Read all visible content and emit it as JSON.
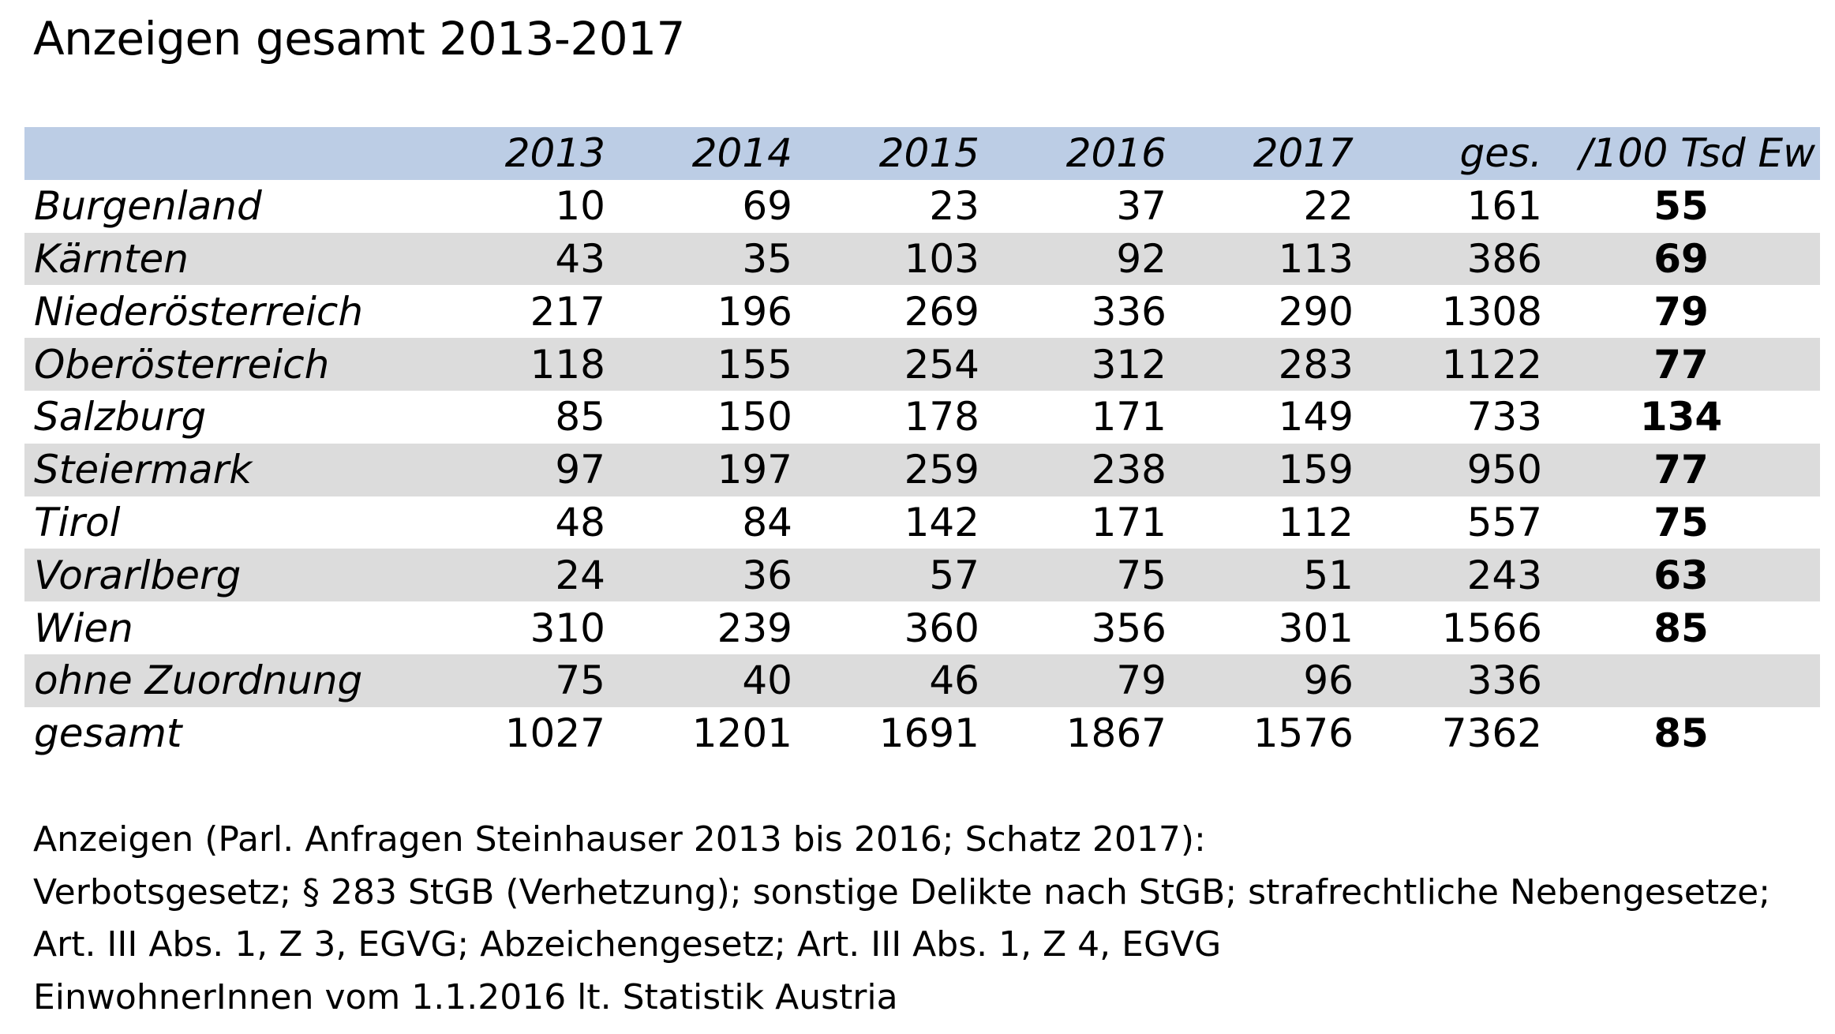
{
  "title": "Anzeigen gesamt 2013-2017",
  "chart_data": {
    "type": "table",
    "title": "Anzeigen gesamt 2013-2017",
    "columns": [
      "",
      "2013",
      "2014",
      "2015",
      "2016",
      "2017",
      "ges.",
      "/100 Tsd Ew"
    ],
    "rows": [
      {
        "label": "Burgenland",
        "values": [
          "10",
          "69",
          "23",
          "37",
          "22",
          "161"
        ],
        "rate": "55"
      },
      {
        "label": "Kärnten",
        "values": [
          "43",
          "35",
          "103",
          "92",
          "113",
          "386"
        ],
        "rate": "69"
      },
      {
        "label": "Niederösterreich",
        "values": [
          "217",
          "196",
          "269",
          "336",
          "290",
          "1308"
        ],
        "rate": "79"
      },
      {
        "label": "Oberösterreich",
        "values": [
          "118",
          "155",
          "254",
          "312",
          "283",
          "1122"
        ],
        "rate": "77"
      },
      {
        "label": "Salzburg",
        "values": [
          "85",
          "150",
          "178",
          "171",
          "149",
          "733"
        ],
        "rate": "134"
      },
      {
        "label": "Steiermark",
        "values": [
          "97",
          "197",
          "259",
          "238",
          "159",
          "950"
        ],
        "rate": "77"
      },
      {
        "label": "Tirol",
        "values": [
          "48",
          "84",
          "142",
          "171",
          "112",
          "557"
        ],
        "rate": "75"
      },
      {
        "label": "Vorarlberg",
        "values": [
          "24",
          "36",
          "57",
          "75",
          "51",
          "243"
        ],
        "rate": "63"
      },
      {
        "label": "Wien",
        "values": [
          "310",
          "239",
          "360",
          "356",
          "301",
          "1566"
        ],
        "rate": "85"
      },
      {
        "label": "ohne Zuordnung",
        "values": [
          "75",
          "40",
          "46",
          "79",
          "96",
          "336"
        ],
        "rate": ""
      },
      {
        "label": "gesamt",
        "values": [
          "1027",
          "1201",
          "1691",
          "1867",
          "1576",
          "7362"
        ],
        "rate": "85"
      }
    ]
  },
  "notes": [
    "Anzeigen (Parl. Anfragen Steinhauser 2013 bis 2016; Schatz 2017):",
    "Verbotsgesetz; § 283 StGB (Verhetzung); sonstige Delikte nach StGB; strafrechtliche Nebengesetze;",
    "Art. III Abs. 1, Z 3, EGVG; Abzeichengesetz; Art. III Abs. 1, Z 4, EGVG",
    "EinwohnerInnen vom 1.1.2016 lt. Statistik Austria"
  ],
  "colors": {
    "header_background": "#bccde5",
    "stripe_background": "#dcdcdc",
    "page_background": "#ffffff",
    "text": "#000000"
  }
}
